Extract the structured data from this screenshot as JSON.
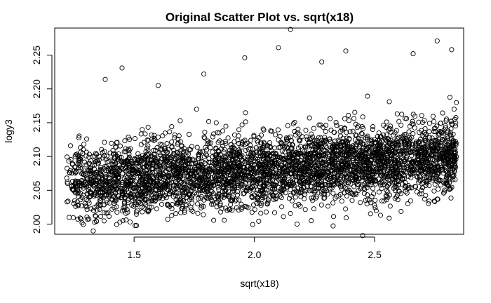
{
  "chart_data": {
    "type": "scatter",
    "title": "Original Scatter Plot vs. sqrt(x18)",
    "xlabel": "sqrt(x18)",
    "ylabel": "logy3",
    "xlim": [
      1.17,
      2.87
    ],
    "ylim": [
      1.985,
      2.29
    ],
    "xticks": [
      1.5,
      2.0,
      2.5
    ],
    "xtick_labels": [
      "1.5",
      "2.0",
      "2.5"
    ],
    "yticks": [
      2.0,
      2.05,
      2.1,
      2.15,
      2.2,
      2.25
    ],
    "ytick_labels": [
      "2.00",
      "2.05",
      "2.10",
      "2.15",
      "2.20",
      "2.25"
    ],
    "grid": false,
    "marker": "open-circle",
    "point_cloud": {
      "n_points": 4000,
      "x_range": [
        1.22,
        2.84
      ],
      "trend_y_at_x_min": 2.06,
      "trend_y_at_x_max": 2.1,
      "spread_sd": 0.027
    },
    "points": [
      {
        "x": 2.15,
        "y": 2.288
      },
      {
        "x": 2.1,
        "y": 2.261
      },
      {
        "x": 2.76,
        "y": 2.271
      },
      {
        "x": 2.45,
        "y": 1.983
      },
      {
        "x": 1.45,
        "y": 2.231
      },
      {
        "x": 2.38,
        "y": 2.256
      },
      {
        "x": 2.66,
        "y": 2.252
      },
      {
        "x": 2.82,
        "y": 2.258
      },
      {
        "x": 1.6,
        "y": 2.205
      },
      {
        "x": 1.38,
        "y": 2.214
      },
      {
        "x": 1.96,
        "y": 2.246
      },
      {
        "x": 2.28,
        "y": 2.24
      },
      {
        "x": 1.79,
        "y": 2.222
      },
      {
        "x": 1.33,
        "y": 1.99
      },
      {
        "x": 1.51,
        "y": 1.998
      },
      {
        "x": 1.64,
        "y": 2.007
      },
      {
        "x": 1.23,
        "y": 2.01
      },
      {
        "x": 1.86,
        "y": 2.018
      },
      {
        "x": 2.02,
        "y": 2.03
      },
      {
        "x": 2.55,
        "y": 2.036
      }
    ]
  }
}
